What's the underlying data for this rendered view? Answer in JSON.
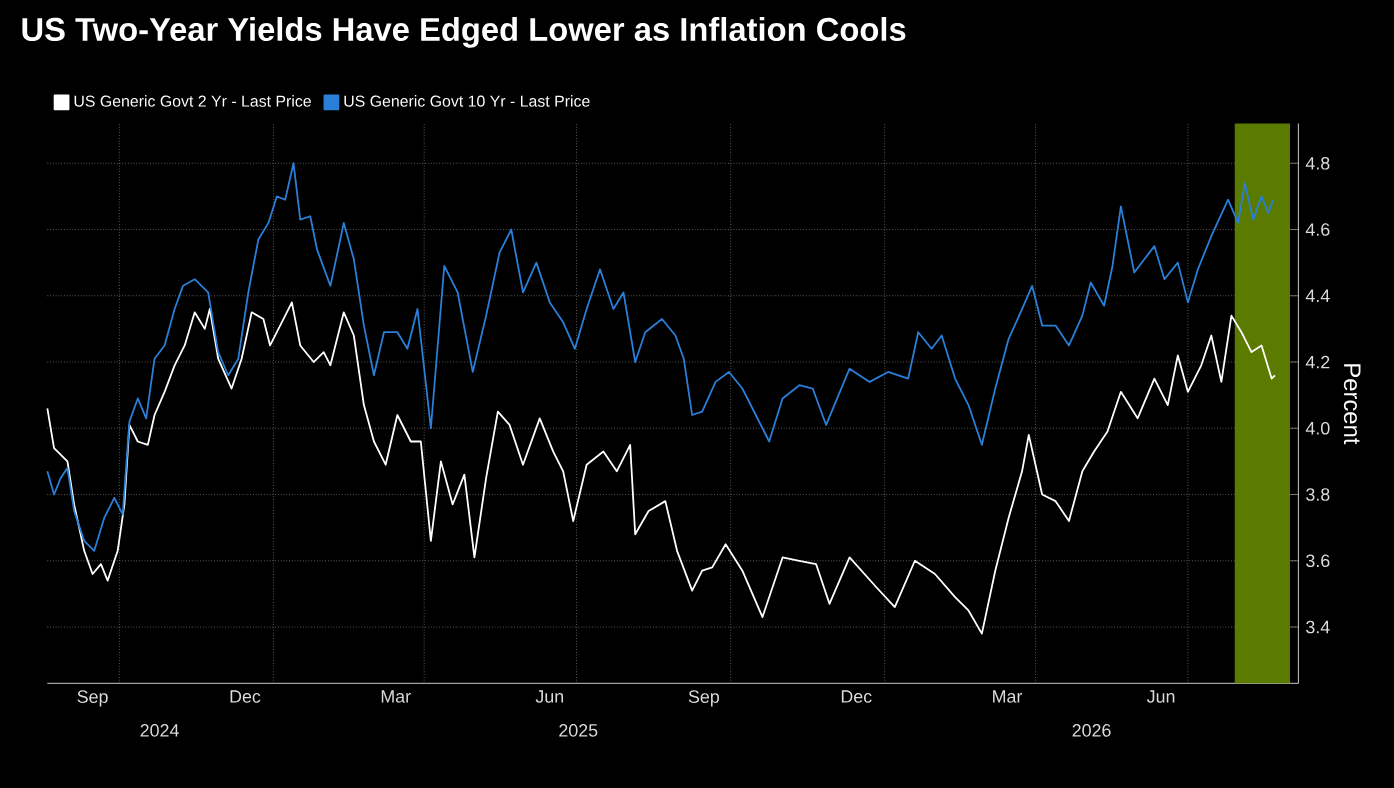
{
  "chart_data": {
    "type": "line",
    "title": "US Two-Year Yields Have Edged Lower as Inflation Cools",
    "ylabel": "Percent",
    "series": [
      {
        "name": "US Generic Govt 2 Yr - Last Price",
        "color": "#ffffff",
        "x": [
          "2024-08-19",
          "2024-08-23",
          "2024-08-27",
          "2024-08-31",
          "2024-09-04",
          "2024-09-10",
          "2024-09-15",
          "2024-09-20",
          "2024-09-24",
          "2024-09-30",
          "2024-10-04",
          "2024-10-07",
          "2024-10-12",
          "2024-10-18",
          "2024-10-22",
          "2024-10-28",
          "2024-11-03",
          "2024-11-09",
          "2024-11-15",
          "2024-11-21",
          "2024-11-24",
          "2024-11-29",
          "2024-12-07",
          "2024-12-13",
          "2024-12-19",
          "2024-12-26",
          "2024-12-30",
          "2025-01-05",
          "2025-01-12",
          "2025-01-17",
          "2025-01-25",
          "2025-01-31",
          "2025-02-04",
          "2025-02-12",
          "2025-02-18",
          "2025-02-24",
          "2025-03-02",
          "2025-03-09",
          "2025-03-16",
          "2025-03-24",
          "2025-03-30",
          "2025-04-05",
          "2025-04-11",
          "2025-04-18",
          "2025-04-25",
          "2025-05-01",
          "2025-05-08",
          "2025-05-15",
          "2025-05-22",
          "2025-05-30",
          "2025-06-09",
          "2025-06-17",
          "2025-06-23",
          "2025-06-29",
          "2025-07-07",
          "2025-07-17",
          "2025-07-25",
          "2025-08-02",
          "2025-08-05",
          "2025-08-13",
          "2025-08-23",
          "2025-08-30",
          "2025-09-08",
          "2025-09-14",
          "2025-09-20",
          "2025-09-28",
          "2025-10-08",
          "2025-10-20",
          "2025-11-01",
          "2025-11-11",
          "2025-11-21",
          "2025-11-29",
          "2025-12-11",
          "2025-12-27",
          "2026-01-07",
          "2026-01-19",
          "2026-01-31",
          "2026-02-12",
          "2026-02-20",
          "2026-02-28",
          "2026-03-08",
          "2026-03-16",
          "2026-03-24",
          "2026-03-28",
          "2026-04-05",
          "2026-04-13",
          "2026-04-21",
          "2026-04-29",
          "2026-05-06",
          "2026-05-14",
          "2026-05-22",
          "2026-06-01",
          "2026-06-11",
          "2026-06-19",
          "2026-06-25",
          "2026-07-01",
          "2026-07-09",
          "2026-07-15",
          "2026-07-21",
          "2026-07-27",
          "2026-08-02",
          "2026-08-08",
          "2026-08-14",
          "2026-08-20",
          "2026-08-22"
        ],
        "values": [
          4.06,
          3.94,
          3.92,
          3.9,
          3.77,
          3.63,
          3.56,
          3.59,
          3.54,
          3.63,
          3.77,
          4.01,
          3.96,
          3.95,
          4.04,
          4.11,
          4.19,
          4.25,
          4.35,
          4.3,
          4.36,
          4.21,
          4.12,
          4.21,
          4.35,
          4.33,
          4.25,
          4.31,
          4.38,
          4.25,
          4.2,
          4.23,
          4.19,
          4.35,
          4.28,
          4.07,
          3.96,
          3.89,
          4.04,
          3.96,
          3.96,
          3.66,
          3.9,
          3.77,
          3.86,
          3.61,
          3.85,
          4.05,
          4.01,
          3.89,
          4.03,
          3.93,
          3.87,
          3.72,
          3.89,
          3.93,
          3.87,
          3.95,
          3.68,
          3.75,
          3.78,
          3.63,
          3.51,
          3.57,
          3.58,
          3.65,
          3.57,
          3.43,
          3.61,
          3.6,
          3.59,
          3.47,
          3.61,
          3.52,
          3.46,
          3.6,
          3.56,
          3.49,
          3.45,
          3.38,
          3.57,
          3.73,
          3.87,
          3.98,
          3.8,
          3.78,
          3.72,
          3.87,
          3.93,
          3.99,
          4.11,
          4.03,
          4.15,
          4.07,
          4.22,
          4.11,
          4.19,
          4.28,
          4.14,
          4.34,
          4.29,
          4.23,
          4.25,
          4.15,
          4.16
        ]
      },
      {
        "name": "US Generic Govt 10 Yr - Last Price",
        "color": "#2a7fd8",
        "x": [
          "2024-08-19",
          "2024-08-23",
          "2024-08-27",
          "2024-08-31",
          "2024-09-04",
          "2024-09-10",
          "2024-09-16",
          "2024-09-22",
          "2024-09-28",
          "2024-10-03",
          "2024-10-07",
          "2024-10-12",
          "2024-10-17",
          "2024-10-22",
          "2024-10-28",
          "2024-11-03",
          "2024-11-08",
          "2024-11-15",
          "2024-11-23",
          "2024-11-29",
          "2024-12-05",
          "2024-12-11",
          "2024-12-17",
          "2024-12-23",
          "2024-12-29",
          "2025-01-03",
          "2025-01-08",
          "2025-01-13",
          "2025-01-17",
          "2025-01-23",
          "2025-01-27",
          "2025-02-04",
          "2025-02-12",
          "2025-02-18",
          "2025-02-24",
          "2025-03-02",
          "2025-03-08",
          "2025-03-16",
          "2025-03-22",
          "2025-03-28",
          "2025-04-05",
          "2025-04-13",
          "2025-04-21",
          "2025-04-30",
          "2025-05-08",
          "2025-05-16",
          "2025-05-23",
          "2025-05-30",
          "2025-06-07",
          "2025-06-15",
          "2025-06-23",
          "2025-06-30",
          "2025-07-07",
          "2025-07-15",
          "2025-07-23",
          "2025-07-29",
          "2025-08-05",
          "2025-08-11",
          "2025-08-21",
          "2025-08-29",
          "2025-09-03",
          "2025-09-08",
          "2025-09-14",
          "2025-09-22",
          "2025-09-30",
          "2025-10-08",
          "2025-10-16",
          "2025-10-24",
          "2025-11-01",
          "2025-11-11",
          "2025-11-19",
          "2025-11-27",
          "2025-12-11",
          "2025-12-23",
          "2026-01-03",
          "2026-01-15",
          "2026-01-21",
          "2026-01-29",
          "2026-02-04",
          "2026-02-12",
          "2026-02-20",
          "2026-02-28",
          "2026-03-08",
          "2026-03-16",
          "2026-03-24",
          "2026-03-30",
          "2026-04-05",
          "2026-04-13",
          "2026-04-21",
          "2026-04-29",
          "2026-05-04",
          "2026-05-12",
          "2026-05-17",
          "2026-05-22",
          "2026-05-30",
          "2026-06-11",
          "2026-06-17",
          "2026-06-25",
          "2026-07-01",
          "2026-07-07",
          "2026-07-15",
          "2026-07-25",
          "2026-07-31",
          "2026-08-04",
          "2026-08-09",
          "2026-08-14",
          "2026-08-18",
          "2026-08-21"
        ],
        "values": [
          3.87,
          3.8,
          3.85,
          3.88,
          3.75,
          3.66,
          3.63,
          3.73,
          3.79,
          3.74,
          4.02,
          4.09,
          4.03,
          4.21,
          4.25,
          4.36,
          4.43,
          4.45,
          4.41,
          4.23,
          4.16,
          4.21,
          4.41,
          4.57,
          4.62,
          4.7,
          4.69,
          4.8,
          4.63,
          4.64,
          4.54,
          4.43,
          4.62,
          4.51,
          4.31,
          4.16,
          4.29,
          4.29,
          4.24,
          4.36,
          4.0,
          4.49,
          4.41,
          4.17,
          4.34,
          4.53,
          4.6,
          4.41,
          4.5,
          4.38,
          4.32,
          4.24,
          4.36,
          4.48,
          4.36,
          4.41,
          4.2,
          4.29,
          4.33,
          4.28,
          4.21,
          4.04,
          4.05,
          4.14,
          4.17,
          4.12,
          4.04,
          3.96,
          4.09,
          4.13,
          4.12,
          4.01,
          4.18,
          4.14,
          4.17,
          4.15,
          4.29,
          4.24,
          4.28,
          4.15,
          4.07,
          3.95,
          4.12,
          4.27,
          4.36,
          4.43,
          4.31,
          4.31,
          4.25,
          4.34,
          4.44,
          4.37,
          4.49,
          4.67,
          4.47,
          4.55,
          4.45,
          4.5,
          4.38,
          4.48,
          4.58,
          4.69,
          4.62,
          4.74,
          4.63,
          4.7,
          4.65,
          4.69
        ]
      }
    ],
    "xlim": [
      "2024-08-19",
      "2026-09-05"
    ],
    "xticks": [
      {
        "value": "2024-09-15",
        "label": "Sep"
      },
      {
        "value": "2024-12-15",
        "label": "Dec"
      },
      {
        "value": "2025-03-15",
        "label": "Mar"
      },
      {
        "value": "2025-06-15",
        "label": "Jun"
      },
      {
        "value": "2025-09-15",
        "label": "Sep"
      },
      {
        "value": "2025-12-15",
        "label": "Dec"
      },
      {
        "value": "2026-03-15",
        "label": "Mar"
      },
      {
        "value": "2026-06-15",
        "label": "Jun"
      },
      {
        "value": "2024-10-01",
        "label": null
      },
      {
        "value": "2025-01-01",
        "label": null
      },
      {
        "value": "2025-04-01",
        "label": null
      },
      {
        "value": "2025-07-01",
        "label": null
      },
      {
        "value": "2025-10-01",
        "label": null
      },
      {
        "value": "2026-01-01",
        "label": null
      },
      {
        "value": "2026-04-01",
        "label": null
      },
      {
        "value": "2026-07-01",
        "label": null
      }
    ],
    "ylim": [
      3.23,
      4.92
    ],
    "yticks": [
      3.4,
      3.6,
      3.8,
      {
        "value": 4.0,
        "label": "4.0"
      },
      4.2,
      4.4,
      4.6,
      4.8
    ],
    "annotations": [
      "2024",
      "2025",
      "2026"
    ],
    "bands": [
      {
        "axis": "x",
        "from": "2026-07-29",
        "to": "2026-08-31",
        "color": "#5a7a00"
      }
    ],
    "grid": true,
    "legend": "top left",
    "line_style": "solid"
  }
}
